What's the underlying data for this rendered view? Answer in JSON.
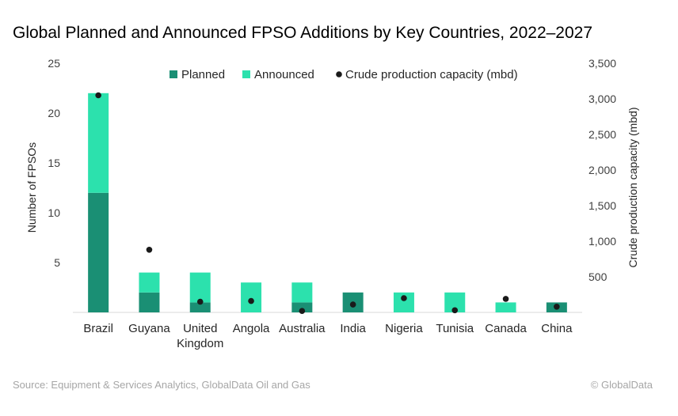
{
  "chart_data": {
    "type": "bar",
    "title": "Global Planned and Announced FPSO Additions by Key Countries, 2022–2027",
    "categories": [
      "Brazil",
      "Guyana",
      "United Kingdom",
      "Angola",
      "Australia",
      "India",
      "Nigeria",
      "Tunisia",
      "Canada",
      "China"
    ],
    "category_lines": [
      [
        "Brazil"
      ],
      [
        "Guyana"
      ],
      [
        "United",
        "Kingdom"
      ],
      [
        "Angola"
      ],
      [
        "Australia"
      ],
      [
        "India"
      ],
      [
        "Nigeria"
      ],
      [
        "Tunisia"
      ],
      [
        "Canada"
      ],
      [
        "China"
      ]
    ],
    "series": [
      {
        "name": "Planned",
        "kind": "bar",
        "stack": "fpso",
        "axis": "left",
        "color": "#1a8f74",
        "values": [
          12,
          2,
          1,
          0,
          1,
          2,
          0,
          0,
          0,
          1
        ]
      },
      {
        "name": "Announced",
        "kind": "bar",
        "stack": "fpso",
        "axis": "left",
        "color": "#2ce1ad",
        "values": [
          10,
          2,
          3,
          3,
          2,
          0,
          2,
          2,
          1,
          0
        ]
      },
      {
        "name": "Crude production capacity (mbd)",
        "kind": "scatter",
        "axis": "right",
        "color": "#1a1a1a",
        "values": [
          3050,
          880,
          150,
          160,
          20,
          110,
          200,
          30,
          190,
          80
        ]
      }
    ],
    "ylabel": "Number of FPSOs",
    "ylim": [
      0,
      25
    ],
    "yticks": [
      5,
      10,
      15,
      20,
      25
    ],
    "y2label": "Crude production capacity (mbd)",
    "y2lim": [
      0,
      3500
    ],
    "y2ticks": [
      500,
      1000,
      1500,
      2000,
      2500,
      3000,
      3500
    ],
    "y2tick_labels": [
      "500",
      "1,000",
      "1,500",
      "2,000",
      "2,500",
      "3,000",
      "3,500"
    ],
    "grid": false,
    "legend": "top-center"
  },
  "footer": {
    "source": "Source: Equipment & Services Analytics, GlobalData Oil and Gas",
    "copyright": "© GlobalData"
  }
}
